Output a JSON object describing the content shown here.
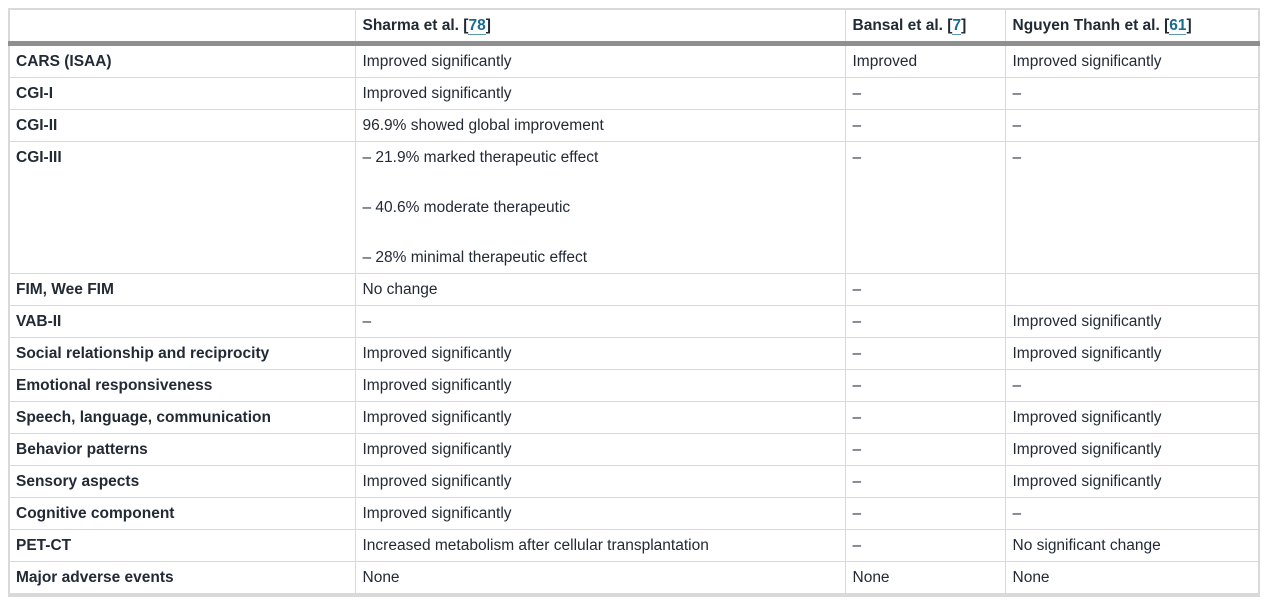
{
  "colors": {
    "text": "#222a35",
    "link": "#1a6b8f",
    "link_underline": "#5e9ab5",
    "border": "#d9d9d9",
    "header_rule": "#8f8f8f",
    "background": "#ffffff"
  },
  "table": {
    "columns": [
      {
        "label": "",
        "ref": ""
      },
      {
        "label": "Sharma et al.",
        "ref": "78"
      },
      {
        "label": "Bansal et al.",
        "ref": "7"
      },
      {
        "label": "Nguyen Thanh et al.",
        "ref": "61"
      }
    ],
    "rows": [
      {
        "label": "CARS (ISAA)",
        "cells": [
          [
            "Improved significantly"
          ],
          [
            "Improved"
          ],
          [
            "Improved significantly"
          ]
        ]
      },
      {
        "label": "CGI-I",
        "cells": [
          [
            "Improved significantly"
          ],
          [
            "–"
          ],
          [
            "–"
          ]
        ]
      },
      {
        "label": "CGI-II",
        "cells": [
          [
            "96.9% showed global improvement"
          ],
          [
            "–"
          ],
          [
            "–"
          ]
        ]
      },
      {
        "label": "CGI-III",
        "cells": [
          [
            "– 21.9% marked therapeutic effect",
            "– 40.6% moderate therapeutic",
            "– 28% minimal therapeutic effect"
          ],
          [
            "–"
          ],
          [
            "–"
          ]
        ]
      },
      {
        "label": "FIM, Wee FIM",
        "cells": [
          [
            "No change"
          ],
          [
            "–"
          ],
          []
        ]
      },
      {
        "label": "VAB-II",
        "cells": [
          [
            "–"
          ],
          [
            "–"
          ],
          [
            "Improved significantly"
          ]
        ]
      },
      {
        "label": "Social relationship and reciprocity",
        "cells": [
          [
            "Improved significantly"
          ],
          [
            "–"
          ],
          [
            "Improved significantly"
          ]
        ]
      },
      {
        "label": "Emotional responsiveness",
        "cells": [
          [
            "Improved significantly"
          ],
          [
            "–"
          ],
          [
            "–"
          ]
        ]
      },
      {
        "label": "Speech, language, communication",
        "cells": [
          [
            "Improved significantly"
          ],
          [
            "–"
          ],
          [
            "Improved significantly"
          ]
        ]
      },
      {
        "label": "Behavior patterns",
        "cells": [
          [
            "Improved significantly"
          ],
          [
            "–"
          ],
          [
            "Improved significantly"
          ]
        ]
      },
      {
        "label": "Sensory aspects",
        "cells": [
          [
            "Improved significantly"
          ],
          [
            "–"
          ],
          [
            "Improved significantly"
          ]
        ]
      },
      {
        "label": "Cognitive component",
        "cells": [
          [
            "Improved significantly"
          ],
          [
            "–"
          ],
          [
            "–"
          ]
        ]
      },
      {
        "label": "PET-CT",
        "cells": [
          [
            "Increased metabolism after cellular transplantation"
          ],
          [
            "–"
          ],
          [
            "No significant change"
          ]
        ]
      },
      {
        "label": "Major adverse events",
        "cells": [
          [
            "None"
          ],
          [
            "None"
          ],
          [
            "None"
          ]
        ]
      }
    ]
  }
}
